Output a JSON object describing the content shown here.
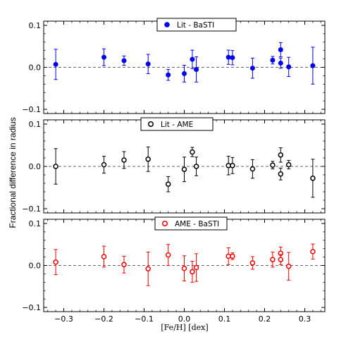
{
  "figure": {
    "ylabel": "Fractional difference in radius",
    "xlabel": "[Fe/H]  [dex]"
  },
  "chart_data": [
    {
      "type": "scatter",
      "legend": "Lit - BaSTI",
      "legend_position": "top-center",
      "color": "#0000ee",
      "marker": "filled-circle",
      "xlim": [
        -0.35,
        0.35
      ],
      "ylim": [
        -0.11,
        0.11
      ],
      "yticks": [
        "0.1",
        "0.0",
        "−0.1"
      ],
      "points": [
        {
          "x": -0.32,
          "y": 0.007,
          "err": 0.036
        },
        {
          "x": -0.2,
          "y": 0.024,
          "err": 0.02
        },
        {
          "x": -0.15,
          "y": 0.016,
          "err": 0.011
        },
        {
          "x": -0.09,
          "y": 0.008,
          "err": 0.023
        },
        {
          "x": -0.04,
          "y": -0.018,
          "err": 0.013
        },
        {
          "x": 0.0,
          "y": -0.015,
          "err": 0.02
        },
        {
          "x": 0.02,
          "y": 0.019,
          "err": 0.022
        },
        {
          "x": 0.03,
          "y": -0.005,
          "err": 0.03
        },
        {
          "x": 0.11,
          "y": 0.024,
          "err": 0.017
        },
        {
          "x": 0.12,
          "y": 0.023,
          "err": 0.017
        },
        {
          "x": 0.17,
          "y": -0.002,
          "err": 0.024
        },
        {
          "x": 0.22,
          "y": 0.017,
          "err": 0.009
        },
        {
          "x": 0.24,
          "y": 0.042,
          "err": 0.017
        },
        {
          "x": 0.24,
          "y": 0.01,
          "err": 0.012
        },
        {
          "x": 0.26,
          "y": 0.001,
          "err": 0.023
        },
        {
          "x": 0.32,
          "y": 0.004,
          "err": 0.044
        }
      ]
    },
    {
      "type": "scatter",
      "legend": "Lit - AME",
      "legend_position": "top-center",
      "color": "#000000",
      "marker": "open-circle",
      "xlim": [
        -0.35,
        0.35
      ],
      "ylim": [
        -0.11,
        0.11
      ],
      "yticks": [
        "0.1",
        "0.0",
        "−0.1"
      ],
      "points": [
        {
          "x": -0.32,
          "y": 0.0,
          "err": 0.042
        },
        {
          "x": -0.2,
          "y": 0.004,
          "err": 0.02
        },
        {
          "x": -0.15,
          "y": 0.015,
          "err": 0.02
        },
        {
          "x": -0.09,
          "y": 0.017,
          "err": 0.029
        },
        {
          "x": -0.04,
          "y": -0.042,
          "err": 0.018
        },
        {
          "x": 0.0,
          "y": -0.007,
          "err": 0.029
        },
        {
          "x": 0.02,
          "y": 0.034,
          "err": 0.011
        },
        {
          "x": 0.03,
          "y": 0.0,
          "err": 0.022
        },
        {
          "x": 0.11,
          "y": 0.002,
          "err": 0.022
        },
        {
          "x": 0.12,
          "y": 0.002,
          "err": 0.019
        },
        {
          "x": 0.17,
          "y": -0.006,
          "err": 0.022
        },
        {
          "x": 0.22,
          "y": 0.003,
          "err": 0.009
        },
        {
          "x": 0.24,
          "y": 0.027,
          "err": 0.017
        },
        {
          "x": 0.24,
          "y": -0.018,
          "err": 0.014
        },
        {
          "x": 0.26,
          "y": 0.004,
          "err": 0.01
        },
        {
          "x": 0.32,
          "y": -0.028,
          "err": 0.045
        }
      ]
    },
    {
      "type": "scatter",
      "legend": "AME - BaSTI",
      "legend_position": "top-center",
      "color": "#ee0000",
      "marker": "open-circle",
      "xlim": [
        -0.35,
        0.35
      ],
      "ylim": [
        -0.11,
        0.11
      ],
      "yticks": [
        "0.1",
        "0.0",
        "−0.1"
      ],
      "xticks": [
        "−0.3",
        "−0.2",
        "−0.1",
        "0.0",
        "0.1",
        "0.2",
        "0.3"
      ],
      "points": [
        {
          "x": -0.32,
          "y": 0.008,
          "err": 0.03
        },
        {
          "x": -0.2,
          "y": 0.021,
          "err": 0.025
        },
        {
          "x": -0.15,
          "y": 0.002,
          "err": 0.02
        },
        {
          "x": -0.09,
          "y": -0.008,
          "err": 0.04
        },
        {
          "x": -0.04,
          "y": 0.025,
          "err": 0.025
        },
        {
          "x": 0.0,
          "y": -0.007,
          "err": 0.03
        },
        {
          "x": 0.02,
          "y": -0.015,
          "err": 0.025
        },
        {
          "x": 0.03,
          "y": -0.005,
          "err": 0.033
        },
        {
          "x": 0.11,
          "y": 0.022,
          "err": 0.02
        },
        {
          "x": 0.12,
          "y": 0.022,
          "err": 0.008
        },
        {
          "x": 0.17,
          "y": 0.006,
          "err": 0.015
        },
        {
          "x": 0.22,
          "y": 0.014,
          "err": 0.018
        },
        {
          "x": 0.24,
          "y": 0.029,
          "err": 0.015
        },
        {
          "x": 0.24,
          "y": 0.014,
          "err": 0.012
        },
        {
          "x": 0.26,
          "y": -0.002,
          "err": 0.033
        },
        {
          "x": 0.32,
          "y": 0.033,
          "err": 0.018
        }
      ]
    }
  ]
}
